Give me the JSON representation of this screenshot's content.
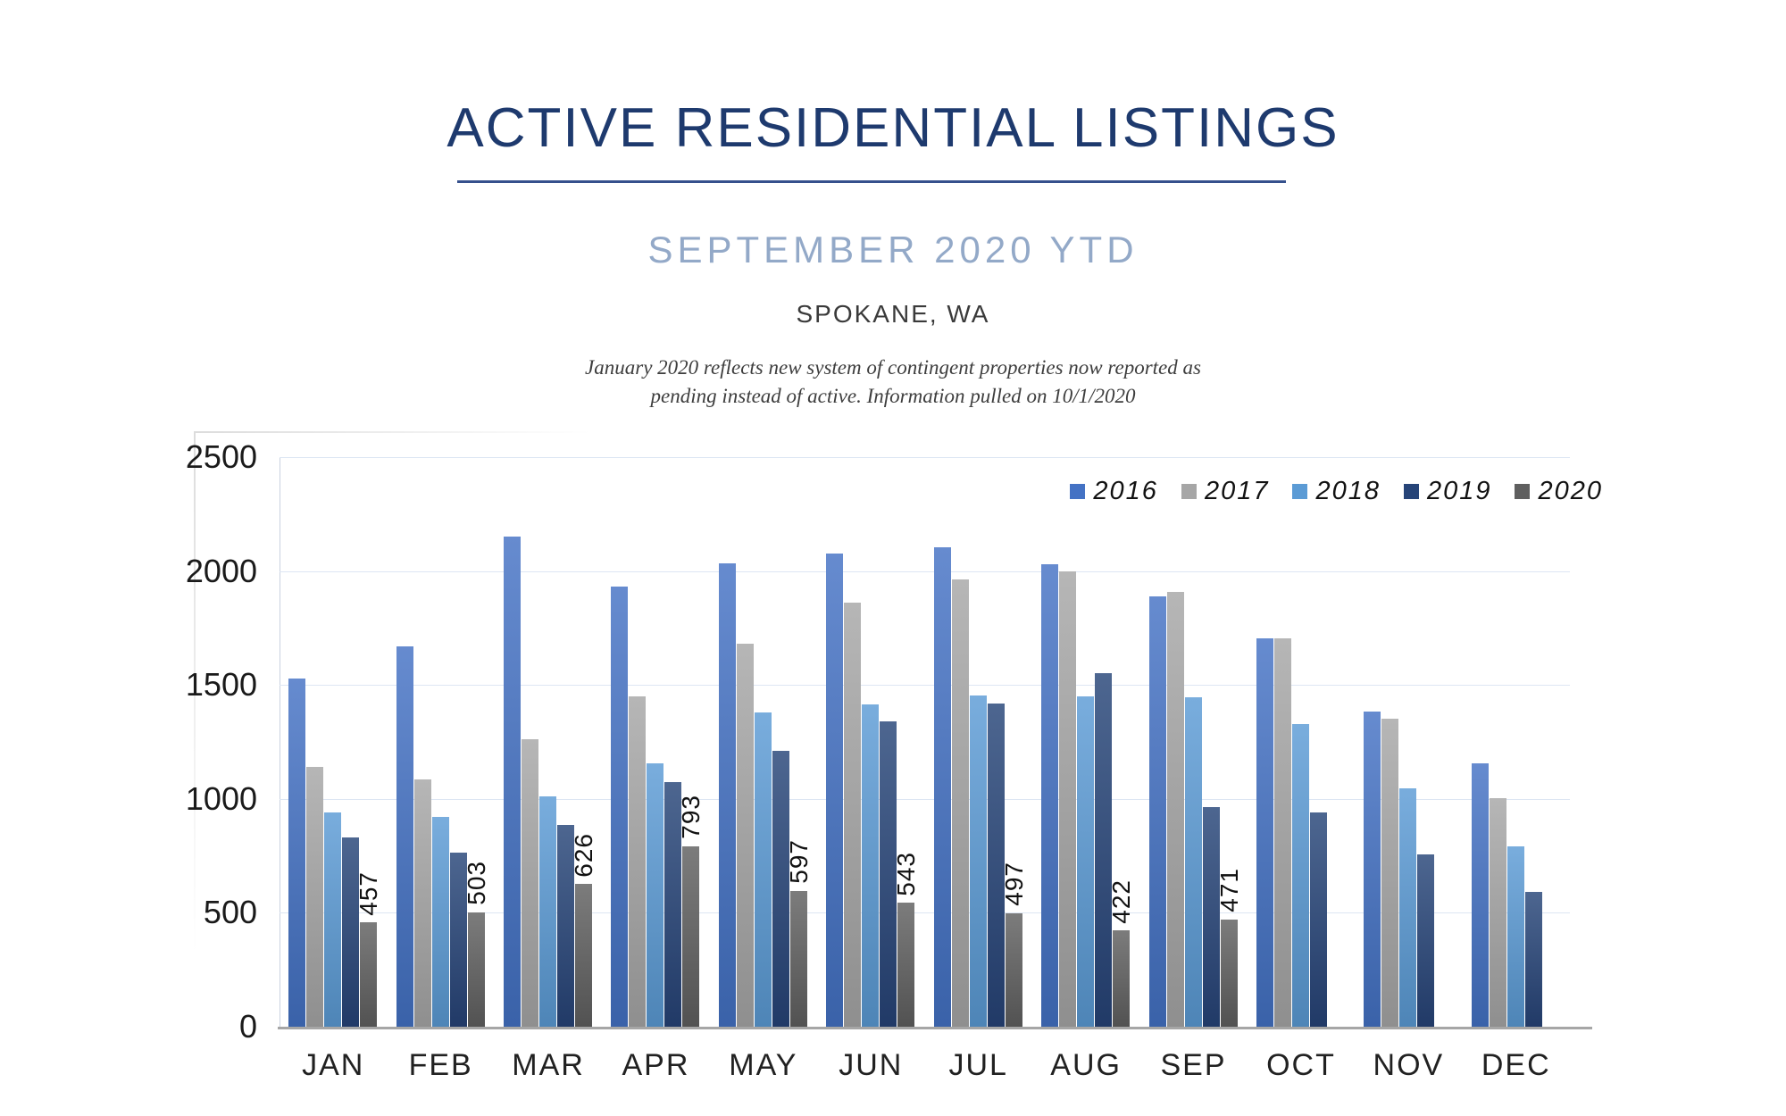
{
  "header": {
    "title": "ACTIVE RESIDENTIAL LISTINGS",
    "subtitle": "SEPTEMBER 2020 YTD",
    "location": "SPOKANE, WA",
    "note_line1": "January 2020 reflects new system of contingent properties now reported as",
    "note_line2": "pending instead of active.  Information pulled on 10/1/2020"
  },
  "theme": {
    "title_color": "#1E3A6E",
    "underline_color": "#35508C",
    "subtitle_color": "#93A9C8",
    "gridline_color": "#DDE6F3",
    "axis_line_color": "#A6A6A6"
  },
  "chart_data": {
    "type": "bar",
    "title": "Active Residential Listings by Month",
    "categories": [
      "JAN",
      "FEB",
      "MAR",
      "APR",
      "MAY",
      "JUN",
      "JUL",
      "AUG",
      "SEP",
      "OCT",
      "NOV",
      "DEC"
    ],
    "series": [
      {
        "name": "2016",
        "color": "#4472C4",
        "values": [
          1530,
          1670,
          2150,
          1930,
          2035,
          2075,
          2105,
          2030,
          1890,
          1705,
          1385,
          1155
        ]
      },
      {
        "name": "2017",
        "color": "#A6A6A6",
        "values": [
          1140,
          1085,
          1260,
          1450,
          1680,
          1860,
          1965,
          2000,
          1910,
          1705,
          1350,
          1005
        ]
      },
      {
        "name": "2018",
        "color": "#5B9BD5",
        "values": [
          940,
          920,
          1010,
          1155,
          1380,
          1415,
          1455,
          1450,
          1445,
          1330,
          1045,
          790
        ]
      },
      {
        "name": "2019",
        "color": "#264478",
        "values": [
          830,
          765,
          885,
          1075,
          1210,
          1340,
          1420,
          1550,
          965,
          940,
          755,
          590
        ]
      },
      {
        "name": "2020",
        "color": "#5F5F5F",
        "data_labels": true,
        "values": [
          457,
          503,
          626,
          793,
          597,
          543,
          497,
          422,
          471,
          null,
          null,
          null
        ]
      }
    ],
    "ylim": [
      0,
      2500
    ],
    "ytick_step": 500,
    "grid": true,
    "legend_position": "top-right"
  }
}
